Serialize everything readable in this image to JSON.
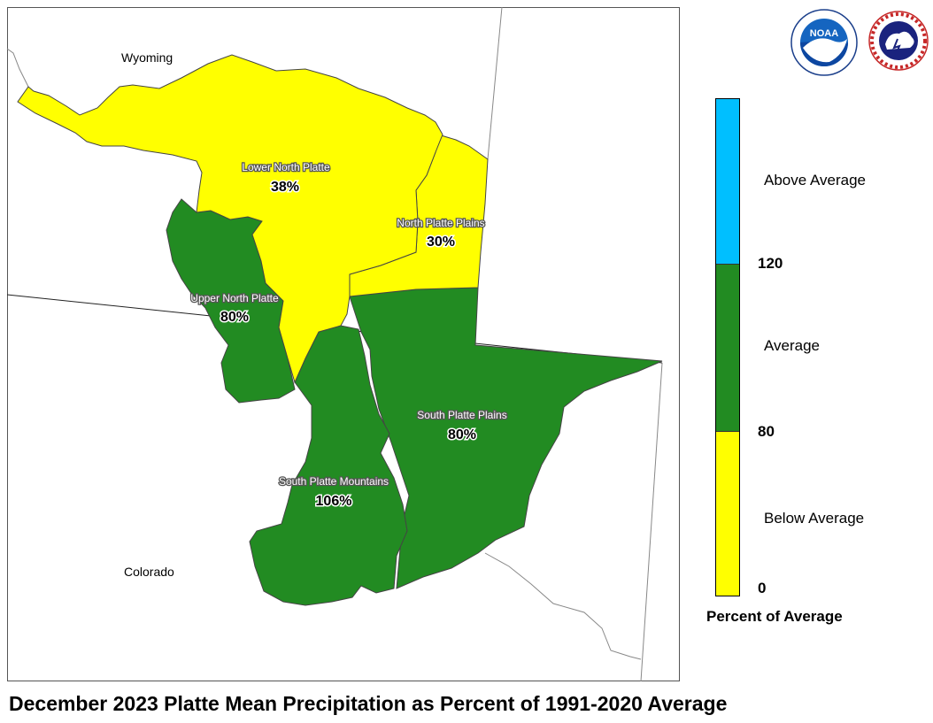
{
  "title": "December 2023 Platte Mean Precipitation as Percent of 1991-2020 Average",
  "states": {
    "wyoming": "Wyoming",
    "colorado": "Colorado"
  },
  "basins": [
    {
      "id": "lower-north-platte",
      "name": "Lower North Platte",
      "percent": "38%",
      "value": 38,
      "category": "Below Average"
    },
    {
      "id": "north-platte-plains",
      "name": "North Platte Plains",
      "percent": "30%",
      "value": 30,
      "category": "Below Average"
    },
    {
      "id": "upper-north-platte",
      "name": "Upper North Platte",
      "percent": "80%",
      "value": 80,
      "category": "Average"
    },
    {
      "id": "south-platte-plains",
      "name": "South Platte Plains",
      "percent": "80%",
      "value": 80,
      "category": "Average"
    },
    {
      "id": "south-platte-mountains",
      "name": "South Platte Mountains",
      "percent": "106%",
      "value": 106,
      "category": "Average"
    }
  ],
  "legend": {
    "title": "Percent of Average",
    "classes": [
      {
        "label": "Above Average",
        "color": "#00bfff"
      },
      {
        "label": "Average",
        "color": "#228b22"
      },
      {
        "label": "Below Average",
        "color": "#ffff00"
      }
    ],
    "ticks": [
      "120",
      "80",
      "0"
    ]
  },
  "logos": {
    "noaa": {
      "text": "NOAA",
      "icon": "noaa-logo-icon"
    },
    "nws": {
      "text": "NATIONAL WEATHER SERVICE",
      "icon": "nws-logo-icon"
    }
  }
}
